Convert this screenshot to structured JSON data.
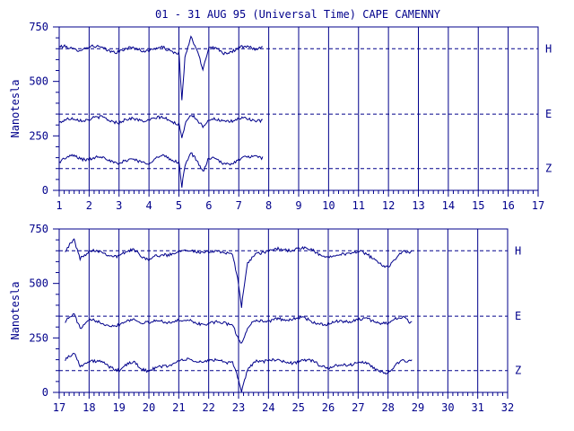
{
  "title": "01 - 31 AUG 95 (Universal Time) CAPE CAMENNY",
  "colors": {
    "ink": "#00008b",
    "background": "#ffffff"
  },
  "chart_data": [
    {
      "type": "line",
      "title": "01 - 31 AUG 95 (Universal Time) CAPE CAMENNY",
      "ylabel": "Nanotesla",
      "xlim": [
        1,
        17
      ],
      "ylim": [
        0,
        750
      ],
      "x_tick_labels": [
        "1",
        "2",
        "3",
        "4",
        "5",
        "6",
        "7",
        "8",
        "9",
        "10",
        "11",
        "12",
        "13",
        "14",
        "15",
        "16",
        "17"
      ],
      "y_tick_labels": [
        "0",
        "250",
        "500",
        "750"
      ],
      "reference_lines": [
        {
          "label": "H",
          "value": 650
        },
        {
          "label": "E",
          "value": 350
        },
        {
          "label": "Z",
          "value": 100
        }
      ],
      "grid": "vertical lines at each day",
      "series": [
        {
          "name": "H",
          "baseline": 650,
          "x_end": 7.8,
          "x": [
            1.0,
            1.5,
            2.0,
            2.5,
            3.0,
            3.5,
            4.0,
            4.5,
            5.0,
            5.1,
            5.2,
            5.4,
            5.6,
            5.8,
            6.0,
            6.5,
            7.0,
            7.5,
            7.8
          ],
          "y": [
            660,
            645,
            660,
            650,
            635,
            655,
            640,
            655,
            630,
            410,
            600,
            700,
            650,
            560,
            660,
            630,
            655,
            650,
            660
          ]
        },
        {
          "name": "E",
          "baseline": 350,
          "x_end": 7.8,
          "x": [
            1.0,
            1.5,
            2.0,
            2.5,
            3.0,
            3.5,
            4.0,
            4.5,
            5.0,
            5.1,
            5.2,
            5.4,
            5.6,
            5.8,
            6.0,
            6.5,
            7.0,
            7.5,
            7.8
          ],
          "y": [
            310,
            330,
            325,
            335,
            310,
            330,
            320,
            335,
            305,
            230,
            300,
            345,
            330,
            300,
            325,
            315,
            330,
            320,
            325
          ]
        },
        {
          "name": "Z",
          "baseline": 100,
          "x_end": 7.8,
          "x": [
            1.0,
            1.5,
            2.0,
            2.5,
            3.0,
            3.5,
            4.0,
            4.5,
            5.0,
            5.1,
            5.2,
            5.4,
            5.6,
            5.8,
            6.0,
            6.5,
            7.0,
            7.5,
            7.8
          ],
          "y": [
            130,
            160,
            140,
            155,
            120,
            145,
            125,
            160,
            130,
            10,
            110,
            170,
            140,
            90,
            150,
            120,
            140,
            155,
            155
          ]
        }
      ]
    },
    {
      "type": "line",
      "ylabel": "Nanotesla",
      "xlim": [
        17,
        32
      ],
      "ylim": [
        0,
        750
      ],
      "x_tick_labels": [
        "17",
        "18",
        "19",
        "20",
        "21",
        "22",
        "23",
        "24",
        "25",
        "26",
        "27",
        "28",
        "29",
        "30",
        "31",
        "32"
      ],
      "y_tick_labels": [
        "0",
        "250",
        "500",
        "750"
      ],
      "reference_lines": [
        {
          "label": "H",
          "value": 650
        },
        {
          "label": "E",
          "value": 350
        },
        {
          "label": "Z",
          "value": 100
        }
      ],
      "grid": "vertical lines at each day",
      "series": [
        {
          "name": "H",
          "baseline": 650,
          "x_end": 28.8,
          "x": [
            17.2,
            17.5,
            17.7,
            18.0,
            18.5,
            19.0,
            19.5,
            20.0,
            21.0,
            22.0,
            22.8,
            23.0,
            23.1,
            23.3,
            23.6,
            24.0,
            25.0,
            25.5,
            26.0,
            27.0,
            28.0,
            28.5,
            28.8
          ],
          "y": [
            645,
            700,
            620,
            650,
            640,
            625,
            655,
            610,
            650,
            645,
            640,
            500,
            390,
            590,
            640,
            650,
            660,
            650,
            620,
            650,
            575,
            645,
            650
          ]
        },
        {
          "name": "E",
          "baseline": 350,
          "x_end": 28.8,
          "x": [
            17.2,
            17.5,
            17.7,
            18.0,
            18.5,
            19.0,
            19.5,
            20.0,
            21.0,
            22.0,
            22.8,
            23.0,
            23.1,
            23.3,
            23.6,
            24.0,
            25.0,
            25.5,
            26.0,
            27.0,
            28.0,
            28.5,
            28.8
          ],
          "y": [
            320,
            360,
            300,
            330,
            315,
            310,
            335,
            320,
            330,
            315,
            320,
            240,
            220,
            290,
            340,
            325,
            345,
            320,
            315,
            335,
            320,
            345,
            325
          ]
        },
        {
          "name": "Z",
          "baseline": 100,
          "x_end": 28.8,
          "x": [
            17.2,
            17.5,
            17.7,
            18.0,
            18.5,
            19.0,
            19.5,
            20.0,
            21.0,
            22.0,
            22.8,
            23.0,
            23.1,
            23.3,
            23.6,
            24.0,
            25.0,
            25.5,
            26.0,
            27.0,
            28.0,
            28.5,
            28.8
          ],
          "y": [
            145,
            180,
            130,
            140,
            135,
            100,
            140,
            95,
            145,
            145,
            140,
            60,
            0,
            100,
            150,
            145,
            140,
            145,
            110,
            140,
            90,
            145,
            150
          ]
        }
      ]
    }
  ]
}
